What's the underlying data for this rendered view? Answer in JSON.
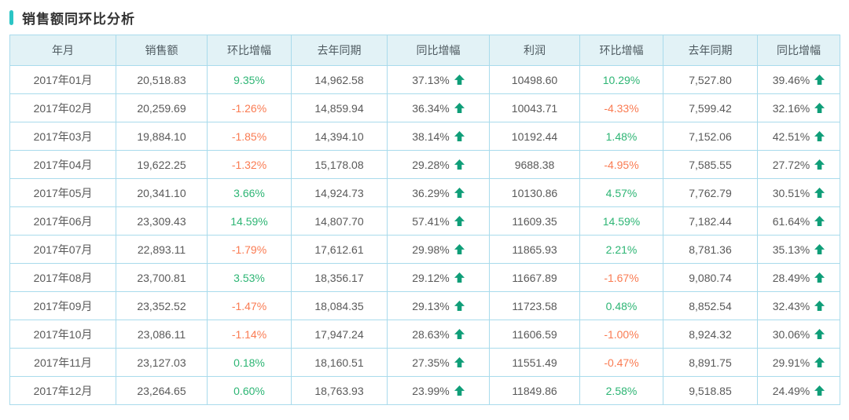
{
  "title": "销售额同环比分析",
  "colors": {
    "accent": "#2bc5c5",
    "header_bg": "#e2f2f6",
    "border": "#a9dbec",
    "stripe_bg": "#f2fafa",
    "highlight_bg": "#d9edf1",
    "positive_green": "#2db574",
    "negative_orange": "#fa7b52",
    "arrow_green": "#0f9e78",
    "text": "#595959"
  },
  "icons": {
    "yoy_arrow": "arrow-up-icon"
  },
  "table": {
    "columns": [
      "年月",
      "销售额",
      "环比增幅",
      "去年同期",
      "同比增幅",
      "利润",
      "环比增幅",
      "去年同期",
      "同比增幅"
    ],
    "highlighted_month": "2017年05月",
    "rows": [
      {
        "month": "2017年01月",
        "sales": "20,518.83",
        "sales_mom": "9.35%",
        "sales_last_year": "14,962.58",
        "sales_yoy": "37.13%",
        "profit": "10498.60",
        "profit_mom": "10.29%",
        "profit_last_year": "7,527.80",
        "profit_yoy": "39.46%"
      },
      {
        "month": "2017年02月",
        "sales": "20,259.69",
        "sales_mom": "-1.26%",
        "sales_last_year": "14,859.94",
        "sales_yoy": "36.34%",
        "profit": "10043.71",
        "profit_mom": "-4.33%",
        "profit_last_year": "7,599.42",
        "profit_yoy": "32.16%"
      },
      {
        "month": "2017年03月",
        "sales": "19,884.10",
        "sales_mom": "-1.85%",
        "sales_last_year": "14,394.10",
        "sales_yoy": "38.14%",
        "profit": "10192.44",
        "profit_mom": "1.48%",
        "profit_last_year": "7,152.06",
        "profit_yoy": "42.51%"
      },
      {
        "month": "2017年04月",
        "sales": "19,622.25",
        "sales_mom": "-1.32%",
        "sales_last_year": "15,178.08",
        "sales_yoy": "29.28%",
        "profit": "9688.38",
        "profit_mom": "-4.95%",
        "profit_last_year": "7,585.55",
        "profit_yoy": "27.72%"
      },
      {
        "month": "2017年05月",
        "sales": "20,341.10",
        "sales_mom": "3.66%",
        "sales_last_year": "14,924.73",
        "sales_yoy": "36.29%",
        "profit": "10130.86",
        "profit_mom": "4.57%",
        "profit_last_year": "7,762.79",
        "profit_yoy": "30.51%"
      },
      {
        "month": "2017年06月",
        "sales": "23,309.43",
        "sales_mom": "14.59%",
        "sales_last_year": "14,807.70",
        "sales_yoy": "57.41%",
        "profit": "11609.35",
        "profit_mom": "14.59%",
        "profit_last_year": "7,182.44",
        "profit_yoy": "61.64%"
      },
      {
        "month": "2017年07月",
        "sales": "22,893.11",
        "sales_mom": "-1.79%",
        "sales_last_year": "17,612.61",
        "sales_yoy": "29.98%",
        "profit": "11865.93",
        "profit_mom": "2.21%",
        "profit_last_year": "8,781.36",
        "profit_yoy": "35.13%"
      },
      {
        "month": "2017年08月",
        "sales": "23,700.81",
        "sales_mom": "3.53%",
        "sales_last_year": "18,356.17",
        "sales_yoy": "29.12%",
        "profit": "11667.89",
        "profit_mom": "-1.67%",
        "profit_last_year": "9,080.74",
        "profit_yoy": "28.49%"
      },
      {
        "month": "2017年09月",
        "sales": "23,352.52",
        "sales_mom": "-1.47%",
        "sales_last_year": "18,084.35",
        "sales_yoy": "29.13%",
        "profit": "11723.58",
        "profit_mom": "0.48%",
        "profit_last_year": "8,852.54",
        "profit_yoy": "32.43%"
      },
      {
        "month": "2017年10月",
        "sales": "23,086.11",
        "sales_mom": "-1.14%",
        "sales_last_year": "17,947.24",
        "sales_yoy": "28.63%",
        "profit": "11606.59",
        "profit_mom": "-1.00%",
        "profit_last_year": "8,924.32",
        "profit_yoy": "30.06%"
      },
      {
        "month": "2017年11月",
        "sales": "23,127.03",
        "sales_mom": "0.18%",
        "sales_last_year": "18,160.51",
        "sales_yoy": "27.35%",
        "profit": "11551.49",
        "profit_mom": "-0.47%",
        "profit_last_year": "8,891.75",
        "profit_yoy": "29.91%"
      },
      {
        "month": "2017年12月",
        "sales": "23,264.65",
        "sales_mom": "0.60%",
        "sales_last_year": "18,763.93",
        "sales_yoy": "23.99%",
        "profit": "11849.86",
        "profit_mom": "2.58%",
        "profit_last_year": "9,518.85",
        "profit_yoy": "24.49%"
      }
    ]
  }
}
